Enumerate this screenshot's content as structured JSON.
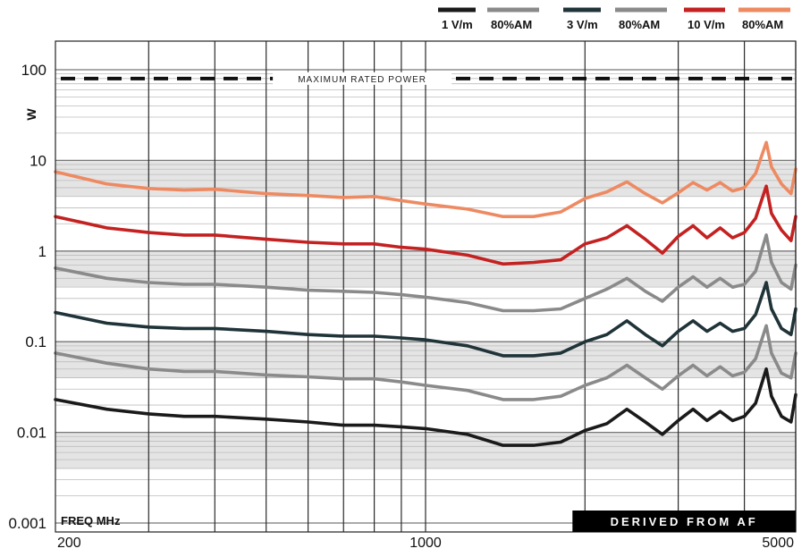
{
  "chart_data": {
    "type": "line",
    "x_scale": "log",
    "y_scale": "log",
    "xlim": [
      200,
      5000
    ],
    "ylim": [
      0.001,
      150
    ],
    "x_tick_labels": [
      {
        "value": 200,
        "label": "200"
      },
      {
        "value": 1000,
        "label": "1000"
      },
      {
        "value": 5000,
        "label": "5000"
      }
    ],
    "y_tick_labels": [
      {
        "value": 100,
        "label": "100"
      },
      {
        "value": 10,
        "label": "10"
      },
      {
        "value": 1,
        "label": "1"
      },
      {
        "value": 0.1,
        "label": "0.1"
      },
      {
        "value": 0.01,
        "label": "0.01"
      },
      {
        "value": 0.001,
        "label": "0.001"
      }
    ],
    "ylabel": "W",
    "xlabel": "FREQ MHz",
    "grid": true,
    "vertical_gridlines": [
      300,
      400,
      500,
      600,
      700,
      800,
      900,
      1000,
      2000,
      3000,
      4000,
      5000
    ],
    "shaded_bands": [
      [
        4,
        10
      ],
      [
        0.4,
        1
      ],
      [
        0.04,
        0.1
      ],
      [
        0.004,
        0.01
      ]
    ],
    "reference_line": {
      "value": 80,
      "label": "MAXIMUM RATED POWER",
      "color": "#111111"
    },
    "badge": "DERIVED FROM AF",
    "legend_position": "top-right",
    "legend": [
      {
        "label": "1 V/m",
        "color": "#1a1a1a"
      },
      {
        "label": "80%AM",
        "color": "#8a8a8a"
      },
      {
        "label": "3 V/m",
        "color": "#1f3338"
      },
      {
        "label": "80%AM",
        "color": "#8a8a8a"
      },
      {
        "label": "10 V/m",
        "color": "#c42121"
      },
      {
        "label": "80%AM",
        "color": "#ee8a62"
      }
    ],
    "series": [
      {
        "color": "#ee8a62",
        "x": [
          200,
          250,
          300,
          350,
          400,
          500,
          600,
          700,
          800,
          900,
          1000,
          1200,
          1400,
          1600,
          1800,
          2000,
          2200,
          2400,
          2600,
          2800,
          3000,
          3200,
          3400,
          3600,
          3800,
          4000,
          4200,
          4400,
          4500,
          4700,
          4900,
          5000
        ],
        "y": [
          7.5,
          5.5,
          4.9,
          4.7,
          4.8,
          4.3,
          4.1,
          3.9,
          4.0,
          3.6,
          3.3,
          2.9,
          2.4,
          2.4,
          2.7,
          3.8,
          4.5,
          5.8,
          4.3,
          3.4,
          4.4,
          5.7,
          4.7,
          5.7,
          4.6,
          5.0,
          7.2,
          15.8,
          8.5,
          5.5,
          4.3,
          8.0
        ]
      },
      {
        "color": "#c42121",
        "x": [
          200,
          250,
          300,
          350,
          400,
          500,
          600,
          700,
          800,
          900,
          1000,
          1200,
          1400,
          1600,
          1800,
          2000,
          2200,
          2400,
          2600,
          2800,
          3000,
          3200,
          3400,
          3600,
          3800,
          4000,
          4200,
          4400,
          4500,
          4700,
          4900,
          5000
        ],
        "y": [
          2.4,
          1.8,
          1.6,
          1.5,
          1.5,
          1.35,
          1.25,
          1.2,
          1.2,
          1.1,
          1.05,
          0.9,
          0.72,
          0.75,
          0.8,
          1.2,
          1.4,
          1.9,
          1.35,
          0.95,
          1.45,
          1.9,
          1.4,
          1.8,
          1.4,
          1.6,
          2.3,
          5.2,
          2.6,
          1.7,
          1.3,
          2.4
        ]
      },
      {
        "color": "#8a8a8a",
        "x": [
          200,
          250,
          300,
          350,
          400,
          500,
          600,
          700,
          800,
          900,
          1000,
          1200,
          1400,
          1600,
          1800,
          2000,
          2200,
          2400,
          2600,
          2800,
          3000,
          3200,
          3400,
          3600,
          3800,
          4000,
          4200,
          4400,
          4500,
          4700,
          4900,
          5000
        ],
        "y": [
          0.65,
          0.5,
          0.45,
          0.43,
          0.43,
          0.4,
          0.37,
          0.36,
          0.35,
          0.33,
          0.31,
          0.27,
          0.22,
          0.22,
          0.23,
          0.3,
          0.38,
          0.5,
          0.36,
          0.28,
          0.4,
          0.52,
          0.4,
          0.5,
          0.4,
          0.43,
          0.6,
          1.5,
          0.75,
          0.45,
          0.38,
          0.7
        ]
      },
      {
        "color": "#1f3338",
        "x": [
          200,
          250,
          300,
          350,
          400,
          500,
          600,
          700,
          800,
          900,
          1000,
          1200,
          1400,
          1600,
          1800,
          2000,
          2200,
          2400,
          2600,
          2800,
          3000,
          3200,
          3400,
          3600,
          3800,
          4000,
          4200,
          4400,
          4500,
          4700,
          4900,
          5000
        ],
        "y": [
          0.21,
          0.16,
          0.145,
          0.14,
          0.14,
          0.13,
          0.12,
          0.115,
          0.115,
          0.11,
          0.105,
          0.09,
          0.07,
          0.07,
          0.075,
          0.1,
          0.12,
          0.17,
          0.12,
          0.09,
          0.13,
          0.17,
          0.13,
          0.16,
          0.13,
          0.14,
          0.2,
          0.45,
          0.23,
          0.14,
          0.12,
          0.23
        ]
      },
      {
        "color": "#8a8a8a",
        "x": [
          200,
          250,
          300,
          350,
          400,
          500,
          600,
          700,
          800,
          900,
          1000,
          1200,
          1400,
          1600,
          1800,
          2000,
          2200,
          2400,
          2600,
          2800,
          3000,
          3200,
          3400,
          3600,
          3800,
          4000,
          4200,
          4400,
          4500,
          4700,
          4900,
          5000
        ],
        "y": [
          0.075,
          0.058,
          0.05,
          0.047,
          0.047,
          0.043,
          0.041,
          0.039,
          0.039,
          0.036,
          0.033,
          0.029,
          0.023,
          0.023,
          0.025,
          0.033,
          0.04,
          0.055,
          0.04,
          0.03,
          0.042,
          0.055,
          0.042,
          0.053,
          0.042,
          0.046,
          0.065,
          0.15,
          0.075,
          0.045,
          0.04,
          0.075
        ]
      },
      {
        "color": "#1a1a1a",
        "x": [
          200,
          250,
          300,
          350,
          400,
          500,
          600,
          700,
          800,
          900,
          1000,
          1200,
          1400,
          1600,
          1800,
          2000,
          2200,
          2400,
          2600,
          2800,
          3000,
          3200,
          3400,
          3600,
          3800,
          4000,
          4200,
          4400,
          4500,
          4700,
          4900,
          5000
        ],
        "y": [
          0.023,
          0.018,
          0.016,
          0.015,
          0.015,
          0.014,
          0.013,
          0.012,
          0.012,
          0.0115,
          0.011,
          0.0095,
          0.0072,
          0.0072,
          0.0078,
          0.0105,
          0.0125,
          0.018,
          0.013,
          0.0095,
          0.0135,
          0.018,
          0.0135,
          0.017,
          0.0135,
          0.015,
          0.021,
          0.05,
          0.025,
          0.015,
          0.013,
          0.026
        ]
      }
    ]
  }
}
